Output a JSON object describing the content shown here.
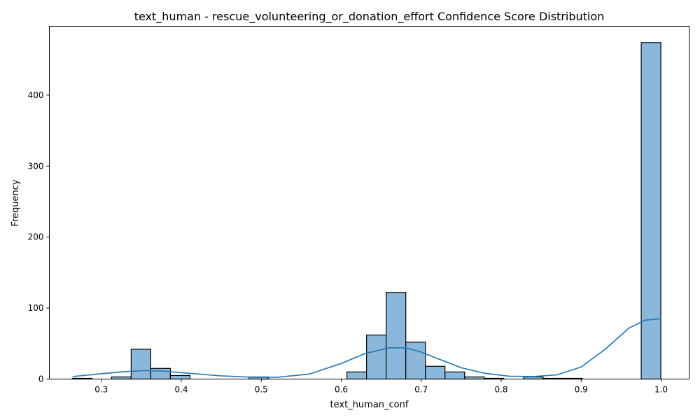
{
  "chart_data": {
    "type": "bar",
    "title": "text_human - rescue_volunteering_or_donation_effort Confidence Score Distribution",
    "xlabel": "text_human_conf",
    "ylabel": "Frequency",
    "xlim": [
      0.235,
      1.035
    ],
    "ylim": [
      0,
      497
    ],
    "x_ticks": [
      "0.3",
      "0.4",
      "0.5",
      "0.6",
      "0.7",
      "0.8",
      "0.9",
      "1.0"
    ],
    "y_ticks": [
      "0",
      "100",
      "200",
      "300",
      "400"
    ],
    "bins": [
      {
        "x0": 0.2637,
        "x1": 0.2883,
        "count": 1
      },
      {
        "x0": 0.3128,
        "x1": 0.3373,
        "count": 3
      },
      {
        "x0": 0.3373,
        "x1": 0.3618,
        "count": 42
      },
      {
        "x0": 0.3618,
        "x1": 0.3863,
        "count": 15
      },
      {
        "x0": 0.3863,
        "x1": 0.4109,
        "count": 5
      },
      {
        "x0": 0.4845,
        "x1": 0.509,
        "count": 3
      },
      {
        "x0": 0.6071,
        "x1": 0.6316,
        "count": 10
      },
      {
        "x0": 0.6316,
        "x1": 0.6561,
        "count": 62
      },
      {
        "x0": 0.6561,
        "x1": 0.6807,
        "count": 122
      },
      {
        "x0": 0.6807,
        "x1": 0.7052,
        "count": 52
      },
      {
        "x0": 0.7052,
        "x1": 0.7297,
        "count": 18
      },
      {
        "x0": 0.7297,
        "x1": 0.7543,
        "count": 10
      },
      {
        "x0": 0.7543,
        "x1": 0.7788,
        "count": 3
      },
      {
        "x0": 0.7788,
        "x1": 0.8033,
        "count": 1
      },
      {
        "x0": 0.8279,
        "x1": 0.8524,
        "count": 3
      },
      {
        "x0": 0.8524,
        "x1": 0.8769,
        "count": 1
      },
      {
        "x0": 0.8769,
        "x1": 0.9015,
        "count": 1
      },
      {
        "x0": 0.9751,
        "x1": 0.9996,
        "count": 474
      }
    ],
    "kde": {
      "x": [
        0.264,
        0.3,
        0.33,
        0.355,
        0.38,
        0.41,
        0.45,
        0.49,
        0.52,
        0.56,
        0.6,
        0.63,
        0.66,
        0.68,
        0.7,
        0.72,
        0.75,
        0.78,
        0.81,
        0.84,
        0.87,
        0.9,
        0.93,
        0.96,
        0.98,
        1.0
      ],
      "y": [
        3.5,
        7.5,
        10.5,
        12,
        11,
        8,
        4.5,
        2.5,
        2.5,
        7,
        22,
        36,
        44,
        44,
        38,
        29,
        16,
        8,
        4,
        3.5,
        6,
        17,
        42,
        72,
        83,
        85
      ]
    },
    "colors": {
      "bar_fill": "#8bb8da",
      "bar_edge": "#000000",
      "kde_line": "#2a7ab5"
    },
    "grid": false,
    "legend": "none"
  }
}
